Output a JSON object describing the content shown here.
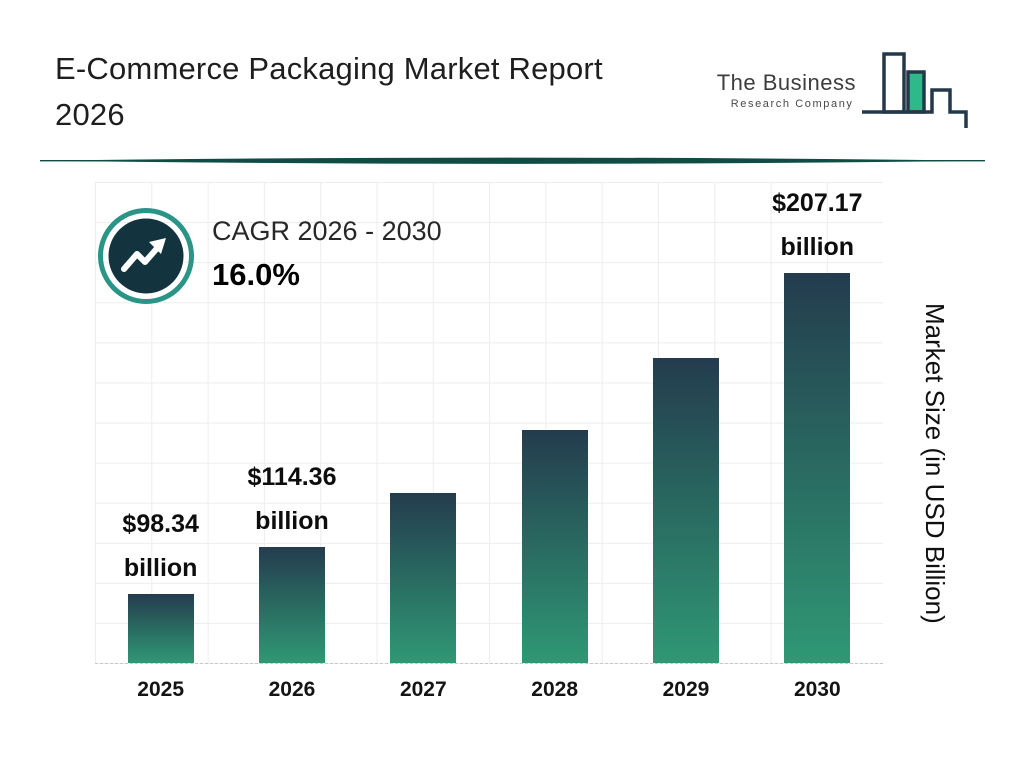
{
  "page": {
    "title_line1": "E-Commerce Packaging Market Report",
    "title_line2": "2026"
  },
  "logo": {
    "name_line1": "The Business",
    "name_line2": "Research Company"
  },
  "cagr": {
    "label": "CAGR 2026 - 2030",
    "value": "16.0%"
  },
  "chart_data": {
    "type": "bar",
    "title": "E-Commerce Packaging Market Report 2026",
    "categories": [
      "2025",
      "2026",
      "2027",
      "2028",
      "2029",
      "2030"
    ],
    "values": [
      98.34,
      114.36,
      132.66,
      153.88,
      178.5,
      207.17
    ],
    "bar_labels": [
      {
        "amount": "$98.34",
        "unit": "billion"
      },
      {
        "amount": "$114.36",
        "unit": "billion"
      },
      null,
      null,
      null,
      {
        "amount": "$207.17",
        "unit": "billion"
      }
    ],
    "xlabel": "",
    "ylabel": "Market Size (in USD Billion)",
    "ylim": [
      75,
      215
    ],
    "grid": true,
    "legend_position": "none",
    "cagr_label": "CAGR 2026 - 2030",
    "cagr_value": "16.0%",
    "bar_color_top": "#243c4e",
    "bar_color_bottom": "#2f9874"
  },
  "colors": {
    "divider": "#0f4c44",
    "badge_ring": "#2a9487",
    "badge_fill": "#13333f",
    "badge_arrow": "#ffffff",
    "logo_outline": "#25384a",
    "logo_accent": "#2eb98a",
    "grid_line": "#ededed"
  }
}
